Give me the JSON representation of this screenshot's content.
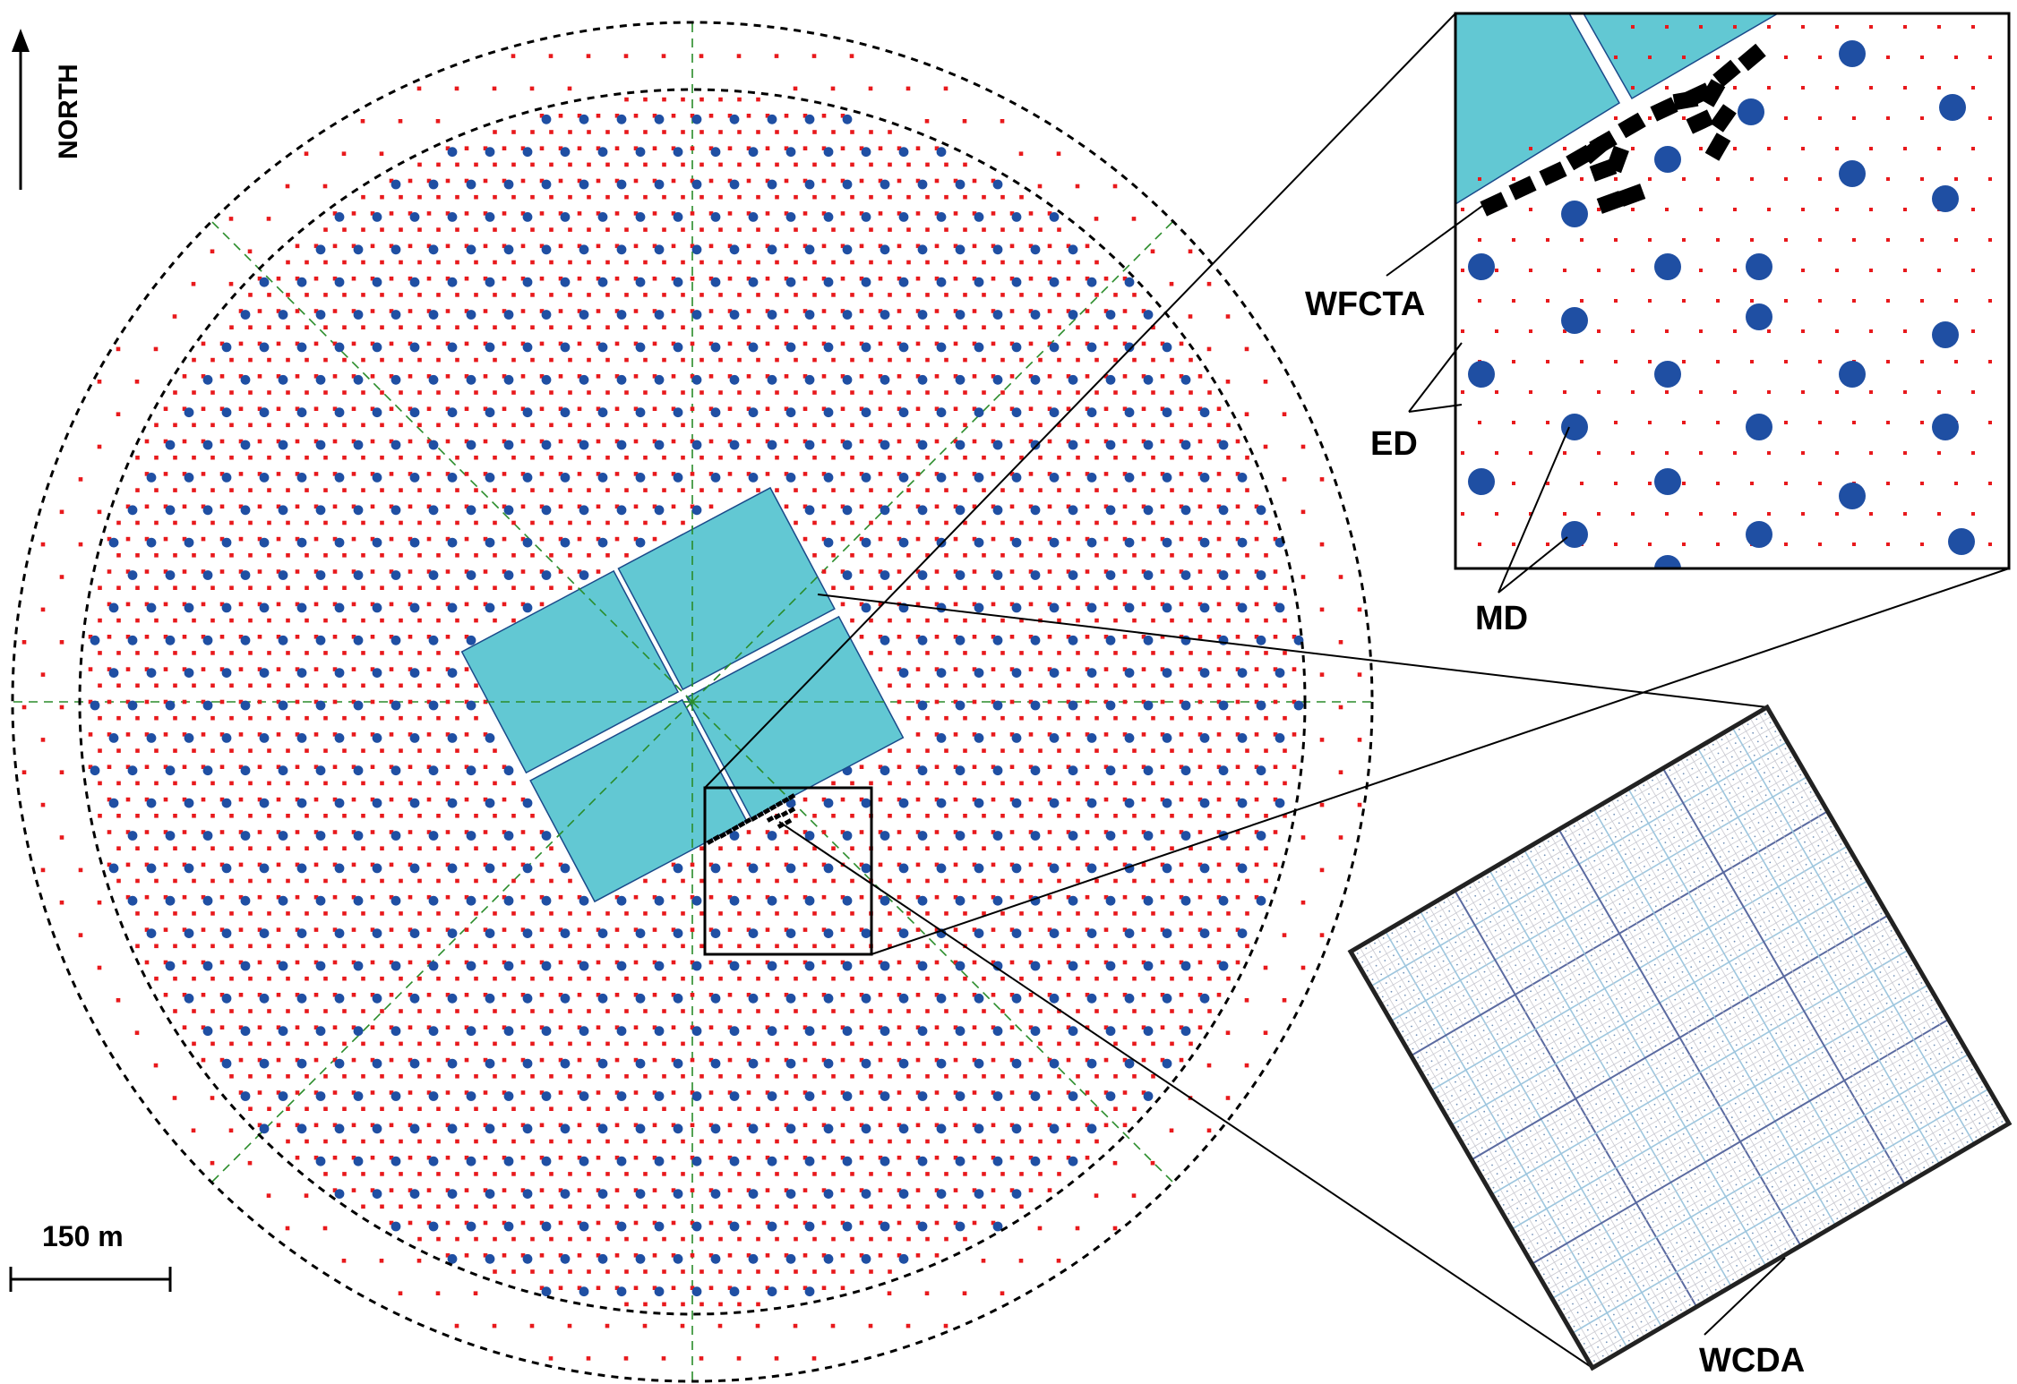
{
  "labels": {
    "north": "NORTH",
    "scale": "150 m",
    "wfcta": "WFCTA",
    "ed": "ED",
    "md": "MD",
    "wcda": "WCDA"
  },
  "colors": {
    "ed_detector": "#e8191c",
    "md_detector": "#1f4fa3",
    "wcda_pond": "#62c8d3",
    "wfcta_telescope": "#000000",
    "sector_lines": "#2a8c2a",
    "boundary": "#000000",
    "wcda_grid_dark": "#5a6aa0",
    "wcda_grid_light": "#9ec6de"
  },
  "icons": {
    "north_arrow": "arrow-up-icon",
    "scale_bar": "scale-bar-icon"
  }
}
